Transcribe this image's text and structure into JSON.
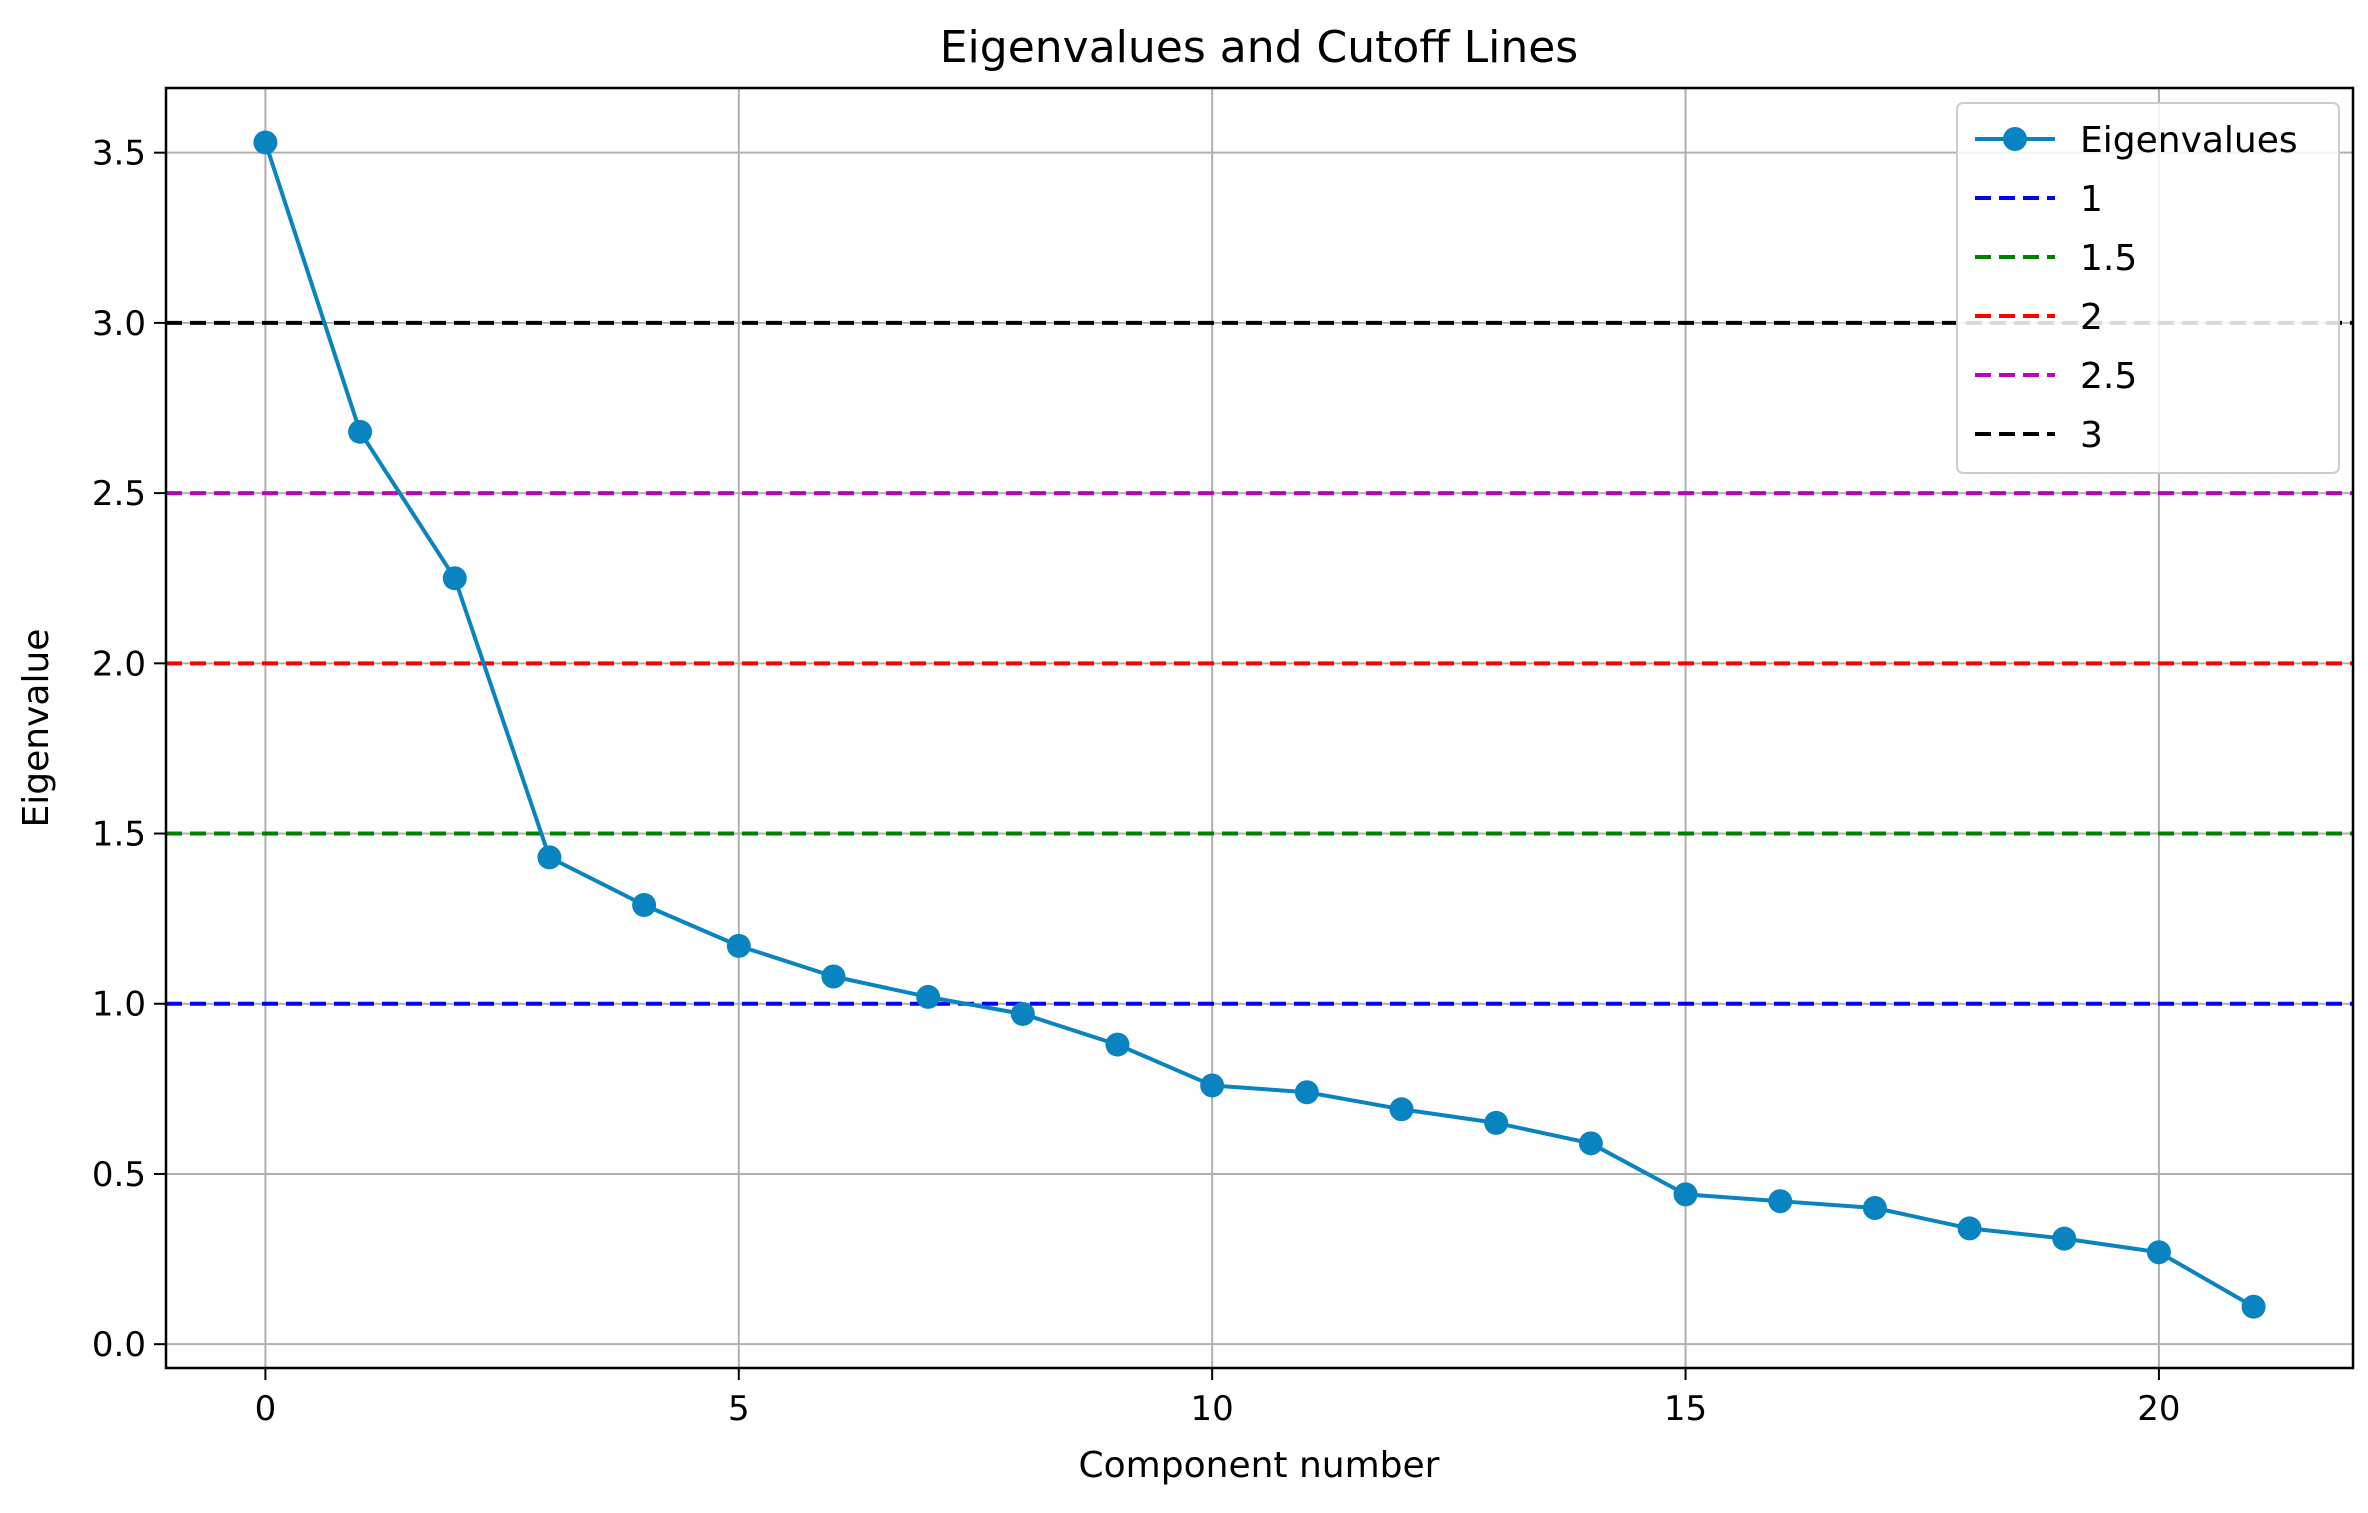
{
  "chart_data": {
    "type": "line",
    "title": "Eigenvalues and Cutoff Lines",
    "xlabel": "Component number",
    "ylabel": "Eigenvalue",
    "xlim": [
      -1.05,
      22.05
    ],
    "ylim": [
      -0.07,
      3.69
    ],
    "xticks": [
      0,
      5,
      10,
      15,
      20
    ],
    "yticks": [
      0.0,
      0.5,
      1.0,
      1.5,
      2.0,
      2.5,
      3.0,
      3.5
    ],
    "xtick_labels": [
      "0",
      "5",
      "10",
      "15",
      "20"
    ],
    "ytick_labels": [
      "0.0",
      "0.5",
      "1.0",
      "1.5",
      "2.0",
      "2.5",
      "3.0",
      "3.5"
    ],
    "grid": true,
    "legend_position": "top-right",
    "series": [
      {
        "name": "Eigenvalues",
        "color": "#0a83c1",
        "marker": "circle",
        "x": [
          0,
          1,
          2,
          3,
          4,
          5,
          6,
          7,
          8,
          9,
          10,
          11,
          12,
          13,
          14,
          15,
          16,
          17,
          18,
          19,
          20,
          21
        ],
        "values": [
          3.53,
          2.68,
          2.25,
          1.43,
          1.29,
          1.17,
          1.08,
          1.02,
          0.97,
          0.88,
          0.76,
          0.74,
          0.69,
          0.65,
          0.59,
          0.44,
          0.42,
          0.4,
          0.34,
          0.31,
          0.27,
          0.11
        ]
      }
    ],
    "cutoff_lines": [
      {
        "name": "1",
        "value": 1.0,
        "color": "#0000ff"
      },
      {
        "name": "1.5",
        "value": 1.5,
        "color": "#008000"
      },
      {
        "name": "2",
        "value": 2.0,
        "color": "#ff0000"
      },
      {
        "name": "2.5",
        "value": 2.5,
        "color": "#bf00bf"
      },
      {
        "name": "3",
        "value": 3.0,
        "color": "#000000"
      }
    ]
  }
}
